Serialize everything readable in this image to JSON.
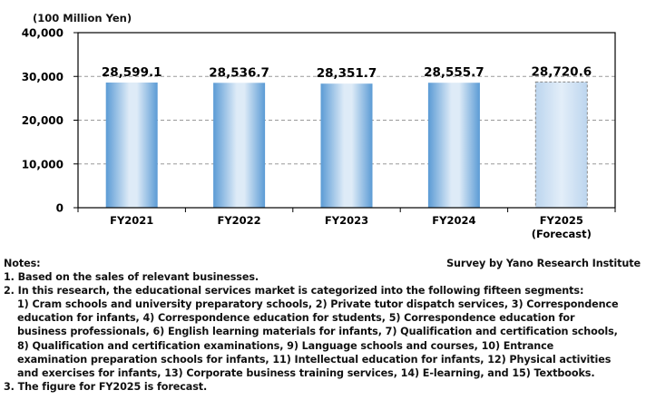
{
  "chart_data": {
    "type": "bar",
    "unit_label": "(100 Million Yen)",
    "categories": [
      "FY2021",
      "FY2022",
      "FY2023",
      "FY2024",
      "FY2025"
    ],
    "category_sublabels": [
      "",
      "",
      "",
      "",
      "(Forecast)"
    ],
    "values": [
      28599.1,
      28536.7,
      28351.7,
      28555.7,
      28720.6
    ],
    "value_labels": [
      "28,599.1",
      "28,536.7",
      "28,351.7",
      "28,555.7",
      "28,720.6"
    ],
    "forecast": [
      false,
      false,
      false,
      false,
      true
    ],
    "ylim": [
      0,
      40000
    ],
    "yticks": [
      0,
      10000,
      20000,
      30000,
      40000
    ],
    "ytick_labels": [
      "0",
      "10,000",
      "20,000",
      "30,000",
      "40,000"
    ],
    "grid": true,
    "colors": {
      "bar_edge": "#5b9bd5",
      "bar_center": "#deebf7",
      "forecast_fill": "#cfe0f3",
      "grid": "#999999"
    }
  },
  "notes": {
    "title": "Notes:",
    "source": "Survey by Yano Research Institute",
    "lines": [
      "1. Based on the sales of relevant businesses.",
      "2. In this research, the educational services market is categorized into the following fifteen segments:"
    ],
    "segments_lines": [
      "1) Cram schools and university preparatory schools, 2) Private tutor dispatch services, 3) Correspondence",
      "education for infants, 4) Correspondence education for students, 5) Correspondence education for",
      "business professionals, 6) English learning materials for infants, 7) Qualification and certification schools,",
      "8) Qualification and certification examinations, 9) Language schools and courses, 10) Entrance",
      "examination preparation schools for infants, 11) Intellectual education for infants, 12) Physical activities",
      "and exercises for infants, 13) Corporate business training services, 14) E-learning, and 15) Textbooks."
    ],
    "last_line": "3. The figure for FY2025 is forecast."
  }
}
